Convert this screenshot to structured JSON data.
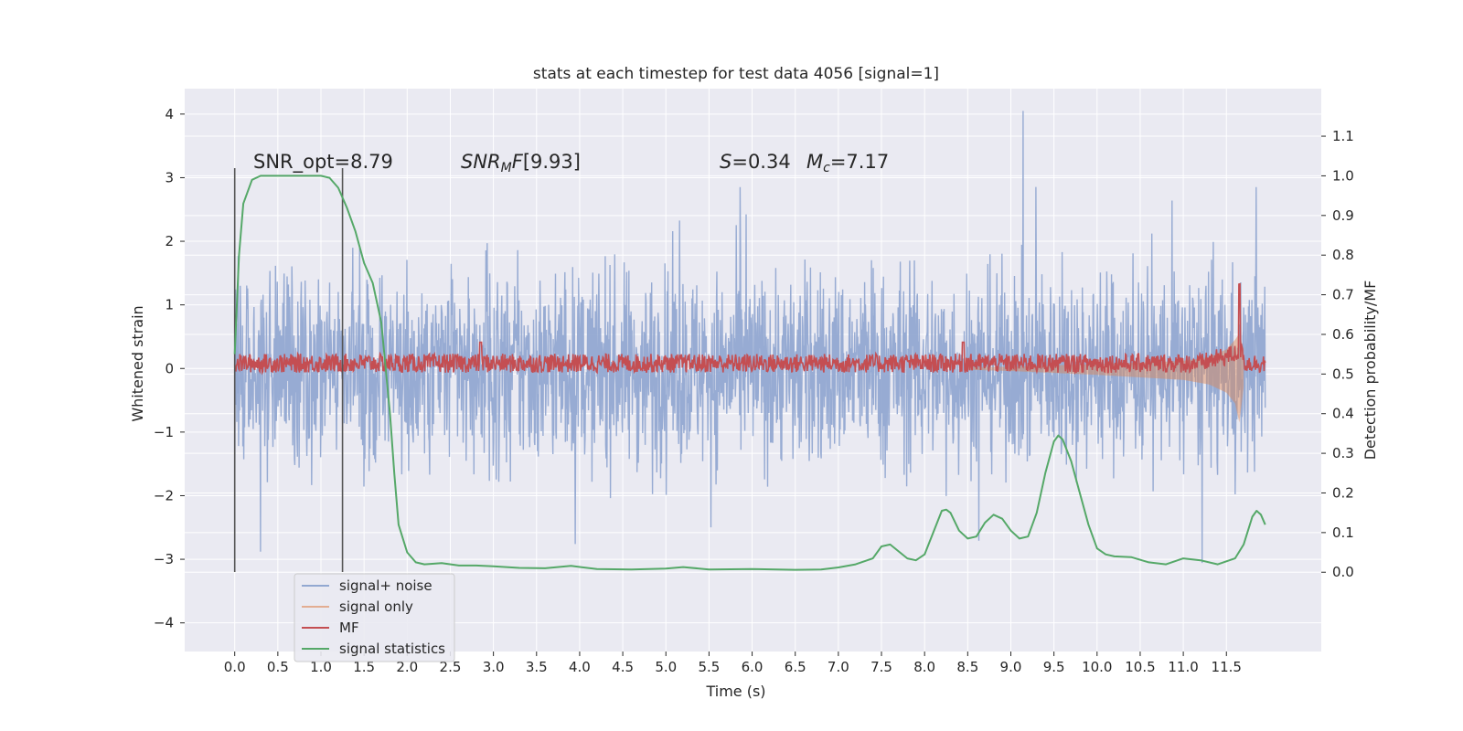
{
  "chart_data": {
    "type": "line",
    "title": "stats at each timestep for test data 4056 [signal=1]",
    "xlabel": "Time (s)",
    "ylabel_left": "Whitened strain",
    "ylabel_right": "Detection probability/MF",
    "xlim": [
      -0.58,
      12.6
    ],
    "ylim_left": [
      -4.45,
      4.4
    ],
    "ylim_right": [
      -0.2,
      1.22
    ],
    "grid": true,
    "legend_position": "lower-left",
    "xticks": [
      "0.0",
      "0.5",
      "1.0",
      "1.5",
      "2.0",
      "2.5",
      "3.0",
      "3.5",
      "4.0",
      "4.5",
      "5.0",
      "5.5",
      "6.0",
      "6.5",
      "7.0",
      "7.5",
      "8.0",
      "8.5",
      "9.0",
      "9.5",
      "10.0",
      "10.5",
      "11.0",
      "11.5"
    ],
    "yticks_left": [
      "4",
      "3",
      "2",
      "1",
      "0",
      "−1",
      "−2",
      "−3",
      "−4"
    ],
    "yticks_right": [
      "1.1",
      "1.0",
      "0.9",
      "0.8",
      "0.7",
      "0.6",
      "0.5",
      "0.4",
      "0.3",
      "0.2",
      "0.1",
      "0.0"
    ],
    "annotations": {
      "snr_opt": "SNR_opt=8.79",
      "snr_mf": "[9.93]",
      "spin": "=0.34",
      "chirp_mass": "=7.17"
    },
    "vertical_lines": [
      0.0,
      1.25
    ],
    "series": [
      {
        "name": "signal+ noise",
        "color": "#92a8d1",
        "description_range": "noise strain, approx -3.5 to 4.0 over t=0..11.95 s",
        "amplitude_envelope": 1.8
      },
      {
        "name": "signal only",
        "color": "#dd8452",
        "t": [
          8.5,
          9.0,
          9.5,
          10.0,
          10.5,
          11.0,
          11.3,
          11.5,
          11.6,
          11.65,
          11.7
        ],
        "upper": [
          0.02,
          0.03,
          0.05,
          0.07,
          0.09,
          0.12,
          0.18,
          0.3,
          0.45,
          0.55,
          0.3
        ],
        "lower": [
          -0.02,
          -0.04,
          -0.07,
          -0.1,
          -0.14,
          -0.18,
          -0.25,
          -0.38,
          -0.55,
          -0.85,
          -0.3
        ]
      },
      {
        "name": "MF",
        "color": "#c44e52",
        "baseline": 0.52,
        "noise_amplitude": 0.03,
        "peaks": [
          {
            "t": 2.85,
            "v": 0.58
          },
          {
            "t": 8.45,
            "v": 0.58
          },
          {
            "t": 11.65,
            "v": 0.7
          }
        ]
      },
      {
        "name": "signal statistics",
        "color": "#55a868",
        "t": [
          0.0,
          0.05,
          0.1,
          0.2,
          0.3,
          0.5,
          0.8,
          1.0,
          1.1,
          1.2,
          1.3,
          1.4,
          1.5,
          1.6,
          1.7,
          1.8,
          1.85,
          1.9,
          2.0,
          2.1,
          2.2,
          2.4,
          2.6,
          2.8,
          3.0,
          3.3,
          3.6,
          3.9,
          4.2,
          4.6,
          5.0,
          5.2,
          5.5,
          6.0,
          6.5,
          6.8,
          7.0,
          7.2,
          7.4,
          7.5,
          7.6,
          7.8,
          7.9,
          8.0,
          8.1,
          8.2,
          8.25,
          8.3,
          8.4,
          8.5,
          8.6,
          8.7,
          8.8,
          8.9,
          9.0,
          9.1,
          9.2,
          9.3,
          9.4,
          9.5,
          9.55,
          9.6,
          9.7,
          9.8,
          9.9,
          10.0,
          10.1,
          10.2,
          10.4,
          10.6,
          10.8,
          11.0,
          11.2,
          11.4,
          11.6,
          11.7,
          11.8,
          11.85,
          11.9,
          11.95
        ],
        "v": [
          0.55,
          0.8,
          0.93,
          0.99,
          1.0,
          1.0,
          1.0,
          1.0,
          0.995,
          0.97,
          0.92,
          0.86,
          0.78,
          0.73,
          0.63,
          0.4,
          0.25,
          0.12,
          0.05,
          0.025,
          0.02,
          0.023,
          0.017,
          0.017,
          0.015,
          0.011,
          0.01,
          0.016,
          0.008,
          0.007,
          0.009,
          0.013,
          0.007,
          0.008,
          0.006,
          0.007,
          0.012,
          0.02,
          0.035,
          0.065,
          0.07,
          0.035,
          0.03,
          0.045,
          0.1,
          0.155,
          0.158,
          0.15,
          0.105,
          0.085,
          0.09,
          0.125,
          0.145,
          0.135,
          0.105,
          0.085,
          0.09,
          0.15,
          0.25,
          0.33,
          0.345,
          0.335,
          0.28,
          0.2,
          0.12,
          0.06,
          0.045,
          0.04,
          0.038,
          0.025,
          0.02,
          0.035,
          0.03,
          0.02,
          0.035,
          0.07,
          0.14,
          0.155,
          0.145,
          0.12
        ]
      }
    ]
  }
}
